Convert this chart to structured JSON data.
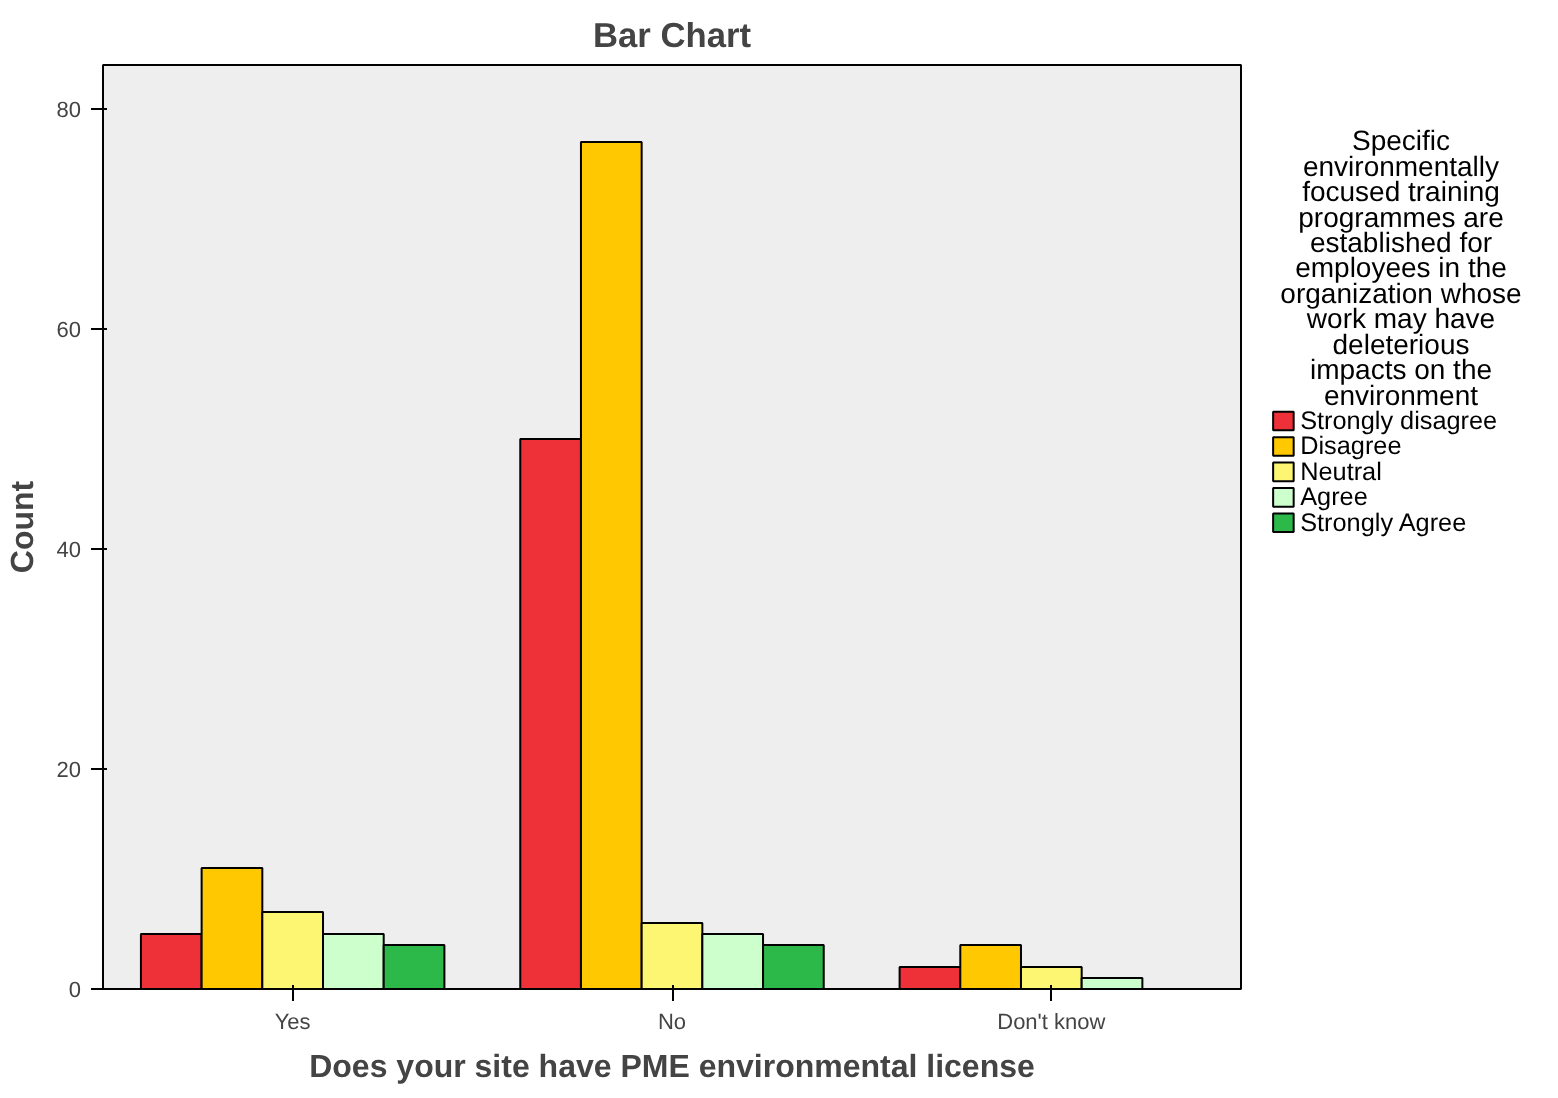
{
  "chart_data": {
    "type": "bar",
    "title": "Bar Chart",
    "xlabel": "Does your site have PME environmental license",
    "ylabel": "Count",
    "legend_title": "Specific environmentally focused training programmes are established for employees in the organization whose work may have deleterious impacts on the environment",
    "categories": [
      "Yes",
      "No",
      "Don't know"
    ],
    "series": [
      {
        "name": "Strongly disagree",
        "color": "#ee3039",
        "values": [
          5,
          50,
          2
        ]
      },
      {
        "name": "Disagree",
        "color": "#ffc800",
        "values": [
          11,
          77,
          4
        ]
      },
      {
        "name": "Neutral",
        "color": "#fcf672",
        "values": [
          7,
          6,
          2
        ]
      },
      {
        "name": "Agree",
        "color": "#ccffcc",
        "values": [
          5,
          5,
          1
        ]
      },
      {
        "name": "Strongly Agree",
        "color": "#2db84a",
        "values": [
          4,
          4,
          null
        ]
      }
    ],
    "ylim": [
      0,
      84
    ],
    "yticks": [
      0,
      20,
      40,
      60,
      80
    ],
    "grid": false,
    "legend": "right"
  }
}
